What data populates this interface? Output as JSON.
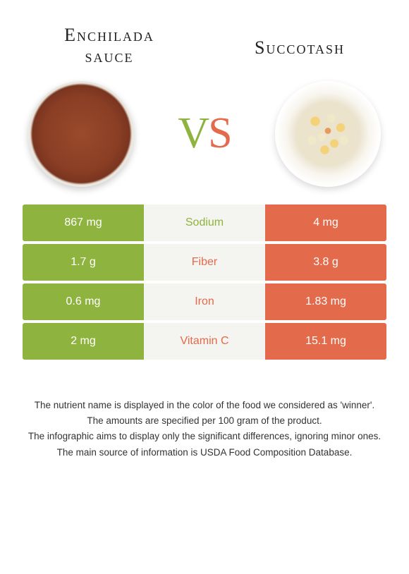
{
  "colors": {
    "left": "#8fb33f",
    "right": "#e36a4a",
    "mid_bg": "#f4f4f0",
    "cell_text": "#ffffff"
  },
  "foods": {
    "left": {
      "name": "Enchilada sauce"
    },
    "right": {
      "name": "Succotash"
    }
  },
  "vs": {
    "v": "V",
    "s": "S"
  },
  "rows": [
    {
      "left": "867 mg",
      "label": "Sodium",
      "right": "4 mg",
      "winner": "left"
    },
    {
      "left": "1.7 g",
      "label": "Fiber",
      "right": "3.8 g",
      "winner": "right"
    },
    {
      "left": "0.6 mg",
      "label": "Iron",
      "right": "1.83 mg",
      "winner": "right"
    },
    {
      "left": "2 mg",
      "label": "Vitamin C",
      "right": "15.1 mg",
      "winner": "right"
    }
  ],
  "footer": {
    "l1": "The nutrient name is displayed in the color of the food we considered as 'winner'.",
    "l2": "The amounts are specified per 100 gram of the product.",
    "l3": "The infographic aims to display only the significant differences, ignoring minor ones.",
    "l4": "The main source of information is USDA Food Composition Database."
  }
}
